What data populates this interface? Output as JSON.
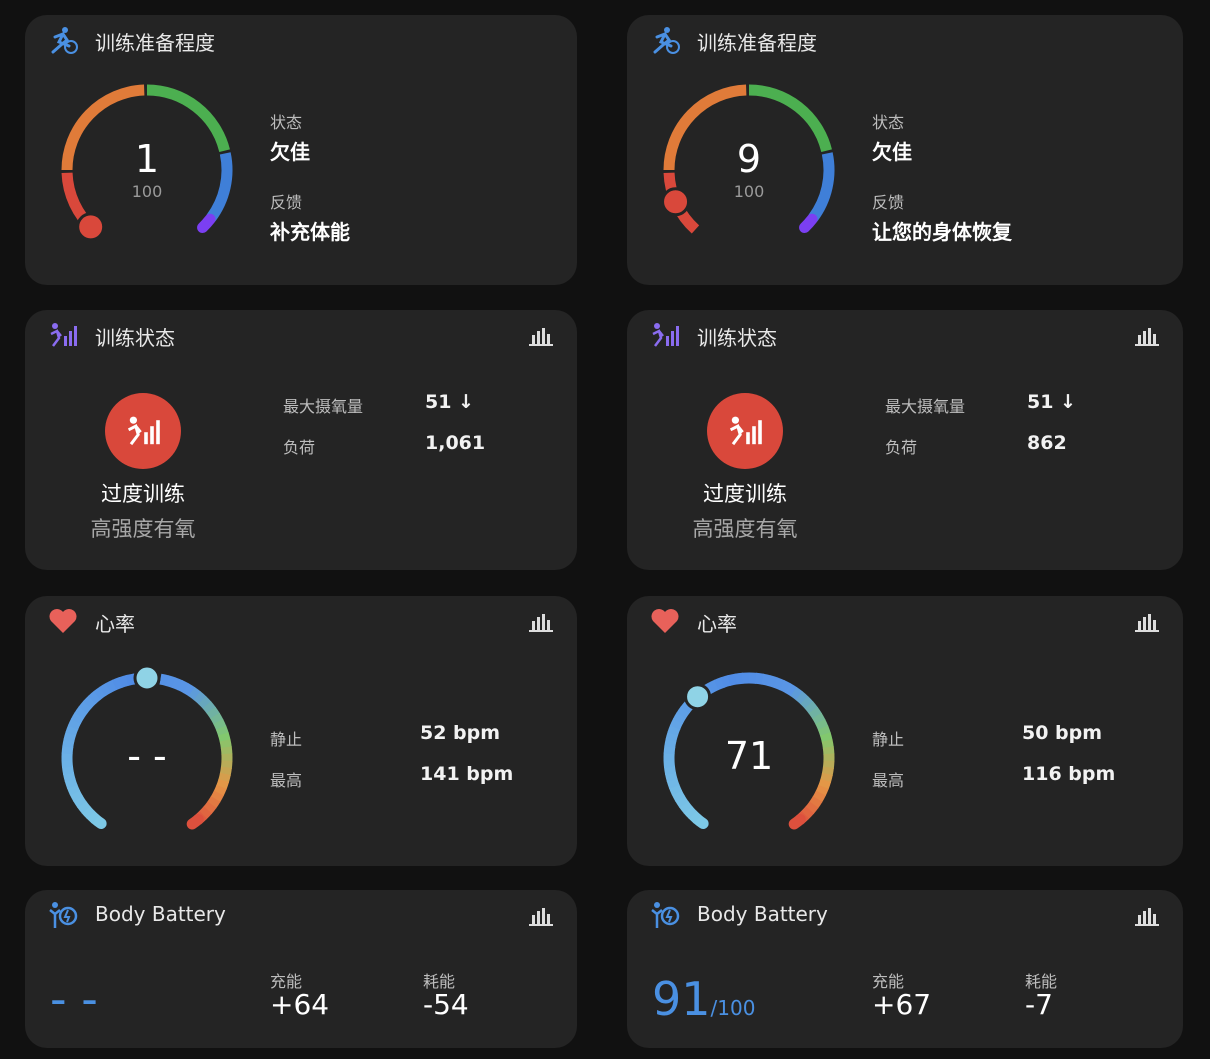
{
  "columns": [
    {
      "readiness": {
        "title": "训练准备程度",
        "score": 1,
        "score_text": "1",
        "max": "100",
        "status_label": "状态",
        "status": "欠佳",
        "feedback_label": "反馈",
        "feedback": "补充体能"
      },
      "training_status": {
        "title": "训练状态",
        "status": "过度训练",
        "subtitle": "高强度有氧",
        "vo2_label": "最大摄氧量",
        "vo2": "51 ↓",
        "load_label": "负荷",
        "load": "1,061"
      },
      "heart_rate": {
        "title": "心率",
        "current": "- -",
        "resting_label": "静止",
        "resting": "52 bpm",
        "max_label": "最高",
        "max": "141 bpm"
      },
      "body_battery": {
        "title": "Body Battery",
        "value": "- -",
        "max": "",
        "charged_label": "充能",
        "charged": "+64",
        "drained_label": "耗能",
        "drained": "-54"
      }
    },
    {
      "readiness": {
        "title": "训练准备程度",
        "score": 9,
        "score_text": "9",
        "max": "100",
        "status_label": "状态",
        "status": "欠佳",
        "feedback_label": "反馈",
        "feedback": "让您的身体恢复"
      },
      "training_status": {
        "title": "训练状态",
        "status": "过度训练",
        "subtitle": "高强度有氧",
        "vo2_label": "最大摄氧量",
        "vo2": "51 ↓",
        "load_label": "负荷",
        "load": "862"
      },
      "heart_rate": {
        "title": "心率",
        "current": "71",
        "resting_label": "静止",
        "resting": "50 bpm",
        "max_label": "最高",
        "max": "116 bpm"
      },
      "body_battery": {
        "title": "Body Battery",
        "value": "91",
        "max": "/100",
        "charged_label": "充能",
        "charged": "+67",
        "drained_label": "耗能",
        "drained": "-7"
      }
    }
  ],
  "colors": {
    "card": "#242424",
    "accent_blue": "#4a90e2",
    "status_red": "#d9483b",
    "gauge_red": "#d9483b",
    "gauge_orange": "#e07b39",
    "gauge_green": "#4caf50",
    "gauge_blue": "#3f7fd8",
    "gauge_purple": "#7b3ff2"
  }
}
